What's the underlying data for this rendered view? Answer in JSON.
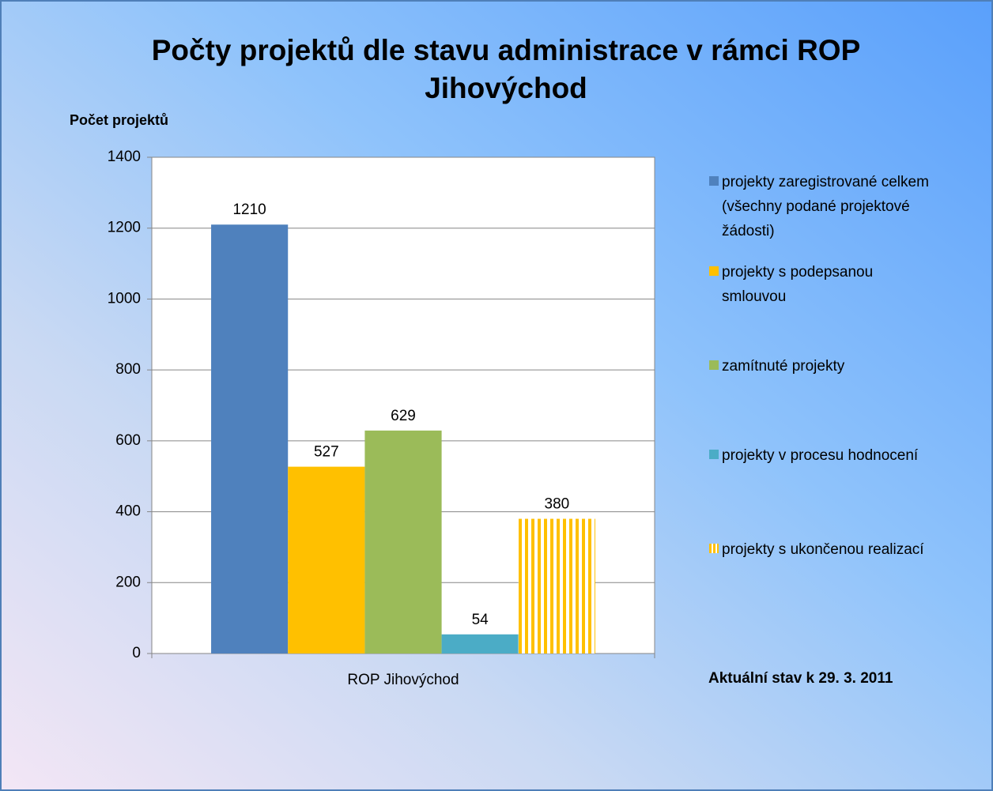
{
  "chart_data": {
    "type": "bar",
    "title": "Počty projektů dle stavu administrace v rámci ROP Jihovýchod",
    "y_axis_label": "Počet projektů",
    "annotation": "Aktuální stav k 29. 3. 2011",
    "categories": [
      "ROP Jihovýchod"
    ],
    "series": [
      {
        "name": "projekty zaregistrované celkem (všechny podané projektové žádosti)",
        "color": "#4f81bd",
        "values": [
          1210
        ]
      },
      {
        "name": "projekty s podepsanou smlouvou",
        "color": "#ffc000",
        "values": [
          527
        ]
      },
      {
        "name": "zamítnuté projekty",
        "color": "#9bbb59",
        "values": [
          629
        ]
      },
      {
        "name": "projekty v procesu hodnocení",
        "color": "#4bacc6",
        "values": [
          54
        ]
      },
      {
        "name": "projekty s ukončenou realizací",
        "color": "#ffc000",
        "pattern": "vertical-stripes",
        "values": [
          380
        ]
      }
    ],
    "ylim": [
      0,
      1400
    ],
    "yticks": [
      0,
      200,
      400,
      600,
      800,
      1000,
      1200,
      1400
    ],
    "grid": true,
    "legend": "right"
  }
}
